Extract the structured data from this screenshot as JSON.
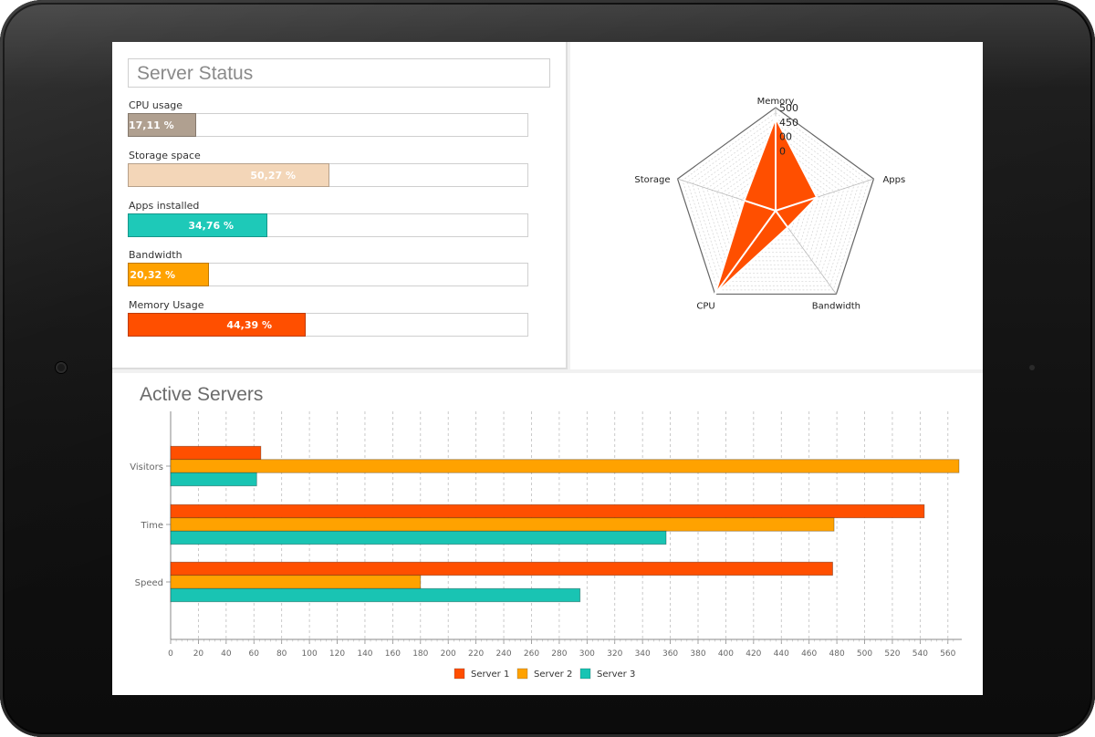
{
  "status": {
    "title": "Server Status",
    "metrics": [
      {
        "label": "CPU usage",
        "value": 17.11,
        "display": "17,11 %",
        "color": "#b0a090"
      },
      {
        "label": "Storage space",
        "value": 50.27,
        "display": "50,27 %",
        "color": "#f3d6b8"
      },
      {
        "label": "Apps installed",
        "value": 34.76,
        "display": "34,76 %",
        "color": "#1ec9b8"
      },
      {
        "label": "Bandwidth",
        "value": 20.32,
        "display": "20,32 %",
        "color": "#ffa200"
      },
      {
        "label": "Memory Usage",
        "value": 44.39,
        "display": "44,39 %",
        "color": "#ff4f00"
      }
    ]
  },
  "radar": {
    "axes": [
      "Memory",
      "Apps",
      "Bandwidth",
      "CPU",
      "Storage"
    ],
    "ticks": [
      "500",
      "450",
      "00",
      "0"
    ],
    "max": 500,
    "values": [
      450,
      210,
      100,
      500,
      160
    ],
    "fill_color": "#ff4f00"
  },
  "servers": {
    "title": "Active Servers",
    "legend": [
      "Server 1",
      "Server 2",
      "Server 3"
    ]
  },
  "chart_data": {
    "type": "bar",
    "orientation": "horizontal",
    "title": "Active Servers",
    "categories": [
      "Visitors",
      "Time",
      "Speed"
    ],
    "series": [
      {
        "name": "Server 1",
        "color": "#ff4f00",
        "values": [
          65,
          543,
          477
        ]
      },
      {
        "name": "Server 2",
        "color": "#ffa200",
        "values": [
          568,
          478,
          180
        ]
      },
      {
        "name": "Server 3",
        "color": "#19c4b3",
        "values": [
          62,
          357,
          295
        ]
      }
    ],
    "xlim": [
      0,
      570
    ],
    "xticks": [
      0,
      20,
      40,
      60,
      80,
      100,
      120,
      140,
      160,
      180,
      200,
      220,
      240,
      260,
      280,
      300,
      320,
      340,
      360,
      380,
      400,
      420,
      440,
      460,
      480,
      500,
      520,
      540,
      560
    ],
    "grid": true,
    "legend_position": "bottom"
  }
}
